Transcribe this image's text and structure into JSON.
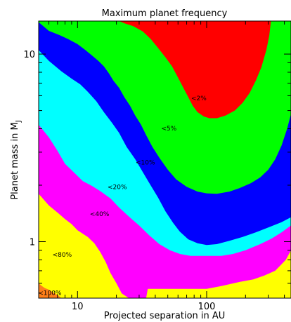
{
  "chart_data": {
    "type": "area",
    "title": "Maximum planet frequency",
    "xlabel": "Projected separation in AU",
    "ylabel_main": "Planet mass in M",
    "ylabel_sub": "J",
    "x_scale": "log",
    "y_scale": "log",
    "xlim": [
      5,
      450
    ],
    "ylim": [
      0.5,
      15
    ],
    "x_tick_labels": [
      {
        "value": 10,
        "label": "10"
      },
      {
        "value": 100,
        "label": "100"
      }
    ],
    "y_tick_labels": [
      {
        "value": 1,
        "label": "1"
      },
      {
        "value": 10,
        "label": "10"
      }
    ],
    "x_minor_ticks": [
      5,
      6,
      7,
      8,
      9,
      20,
      30,
      40,
      50,
      60,
      70,
      80,
      90,
      200,
      300,
      400
    ],
    "y_minor_ticks": [
      0.5,
      0.6,
      0.7,
      0.8,
      0.9,
      2,
      3,
      4,
      5,
      6,
      7,
      8,
      9
    ],
    "grid": false,
    "legend": "none",
    "background_color": "#ffff00",
    "series": [
      {
        "name": "<100%",
        "color": "#ff7f1a",
        "label_at": {
          "x": 6.1,
          "y": 0.53
        },
        "boundary": [
          [
            5,
            0.6
          ],
          [
            5.3,
            0.58
          ],
          [
            5.6,
            0.565
          ],
          [
            6,
            0.555
          ],
          [
            6.5,
            0.535
          ],
          [
            7,
            0.52
          ],
          [
            7.5,
            0.5
          ]
        ]
      },
      {
        "name": "<80%",
        "color": "#ff00ff",
        "label_at": {
          "x": 7.6,
          "y": 0.85
        },
        "boundary": [
          [
            5,
            1.8
          ],
          [
            6,
            1.56
          ],
          [
            7,
            1.43
          ],
          [
            8,
            1.32
          ],
          [
            9,
            1.24
          ],
          [
            10,
            1.15
          ],
          [
            12,
            1.06
          ],
          [
            13.5,
            0.98
          ],
          [
            15,
            0.88
          ],
          [
            16.5,
            0.78
          ],
          [
            18,
            0.68
          ],
          [
            20,
            0.6
          ],
          [
            22,
            0.53
          ],
          [
            25,
            0.5
          ],
          [
            34,
            0.5
          ],
          [
            35,
            0.56
          ],
          [
            100,
            0.56
          ],
          [
            130,
            0.58
          ],
          [
            180,
            0.61
          ],
          [
            230,
            0.63
          ],
          [
            280,
            0.66
          ],
          [
            340,
            0.7
          ],
          [
            410,
            0.8
          ],
          [
            450,
            0.9
          ]
        ]
      },
      {
        "name": "<40%",
        "color": "#00ffff",
        "label_at": {
          "x": 14.8,
          "y": 1.4
        },
        "boundary": [
          [
            5,
            4.2
          ],
          [
            6,
            3.6
          ],
          [
            7,
            3.05
          ],
          [
            8,
            2.6
          ],
          [
            9.5,
            2.32
          ],
          [
            11,
            2.1
          ],
          [
            13,
            1.98
          ],
          [
            15,
            1.86
          ],
          [
            18,
            1.7
          ],
          [
            21,
            1.52
          ],
          [
            25,
            1.36
          ],
          [
            30,
            1.22
          ],
          [
            36,
            1.08
          ],
          [
            43,
            0.97
          ],
          [
            52,
            0.9
          ],
          [
            62,
            0.86
          ],
          [
            75,
            0.84
          ],
          [
            100,
            0.84
          ],
          [
            130,
            0.84
          ],
          [
            160,
            0.86
          ],
          [
            200,
            0.9
          ],
          [
            260,
            0.97
          ],
          [
            320,
            1.04
          ],
          [
            380,
            1.12
          ],
          [
            450,
            1.22
          ]
        ]
      },
      {
        "name": "<20%",
        "color": "#0000ff",
        "label_at": {
          "x": 20.3,
          "y": 1.95
        },
        "boundary": [
          [
            5,
            10.5
          ],
          [
            6,
            9.2
          ],
          [
            7.5,
            8.1
          ],
          [
            9,
            7.4
          ],
          [
            10.5,
            6.9
          ],
          [
            12,
            6.3
          ],
          [
            14,
            5.6
          ],
          [
            16,
            4.9
          ],
          [
            18.5,
            4.3
          ],
          [
            21,
            3.8
          ],
          [
            24,
            3.2
          ],
          [
            28,
            2.75
          ],
          [
            32,
            2.35
          ],
          [
            36,
            2.05
          ],
          [
            42,
            1.72
          ],
          [
            48,
            1.45
          ],
          [
            55,
            1.26
          ],
          [
            62,
            1.13
          ],
          [
            72,
            1.03
          ],
          [
            85,
            0.98
          ],
          [
            100,
            0.96
          ],
          [
            120,
            0.97
          ],
          [
            150,
            1.01
          ],
          [
            190,
            1.06
          ],
          [
            240,
            1.12
          ],
          [
            300,
            1.19
          ],
          [
            380,
            1.27
          ],
          [
            450,
            1.35
          ]
        ]
      },
      {
        "name": "<10%",
        "color": "#00ff00",
        "label_at": {
          "x": 33.5,
          "y": 2.63
        },
        "boundary": [
          [
            5,
            14.8
          ],
          [
            6,
            13.3
          ],
          [
            7.3,
            12.6
          ],
          [
            8.5,
            12.0
          ],
          [
            10,
            11.3
          ],
          [
            11.5,
            10.5
          ],
          [
            13,
            9.8
          ],
          [
            14.5,
            9.2
          ],
          [
            16,
            8.6
          ],
          [
            17.5,
            7.9
          ],
          [
            19,
            7.2
          ],
          [
            21,
            6.6
          ],
          [
            23,
            5.9
          ],
          [
            25.5,
            5.3
          ],
          [
            28,
            4.7
          ],
          [
            31,
            4.2
          ],
          [
            34,
            3.7
          ],
          [
            38,
            3.2
          ],
          [
            43,
            2.8
          ],
          [
            50,
            2.42
          ],
          [
            58,
            2.15
          ],
          [
            70,
            1.96
          ],
          [
            85,
            1.85
          ],
          [
            100,
            1.81
          ],
          [
            120,
            1.8
          ],
          [
            150,
            1.85
          ],
          [
            180,
            1.93
          ],
          [
            220,
            2.05
          ],
          [
            260,
            2.2
          ],
          [
            300,
            2.42
          ],
          [
            340,
            2.75
          ],
          [
            380,
            3.25
          ],
          [
            420,
            4.0
          ],
          [
            450,
            4.8
          ]
        ]
      },
      {
        "name": "<5%",
        "color": "#ff0000",
        "label_at": {
          "x": 51,
          "y": 4.0
        },
        "boundary": [
          [
            21,
            15
          ],
          [
            23,
            14.6
          ],
          [
            27,
            14.1
          ],
          [
            32,
            13.2
          ],
          [
            37,
            12.0
          ],
          [
            42,
            10.8
          ],
          [
            48,
            9.6
          ],
          [
            54,
            8.6
          ],
          [
            60,
            7.5
          ],
          [
            66,
            6.6
          ],
          [
            72,
            5.9
          ],
          [
            78,
            5.3
          ],
          [
            85,
            4.9
          ],
          [
            95,
            4.65
          ],
          [
            105,
            4.55
          ],
          [
            120,
            4.55
          ],
          [
            140,
            4.7
          ],
          [
            165,
            5.0
          ],
          [
            190,
            5.5
          ],
          [
            215,
            6.2
          ],
          [
            240,
            7.2
          ],
          [
            265,
            8.5
          ],
          [
            290,
            10.5
          ],
          [
            305,
            12.5
          ],
          [
            315,
            15
          ]
        ]
      },
      {
        "name": "<2%",
        "color": "#ff0000",
        "label_at": {
          "x": 87,
          "y": 5.8
        },
        "boundary": []
      }
    ]
  }
}
